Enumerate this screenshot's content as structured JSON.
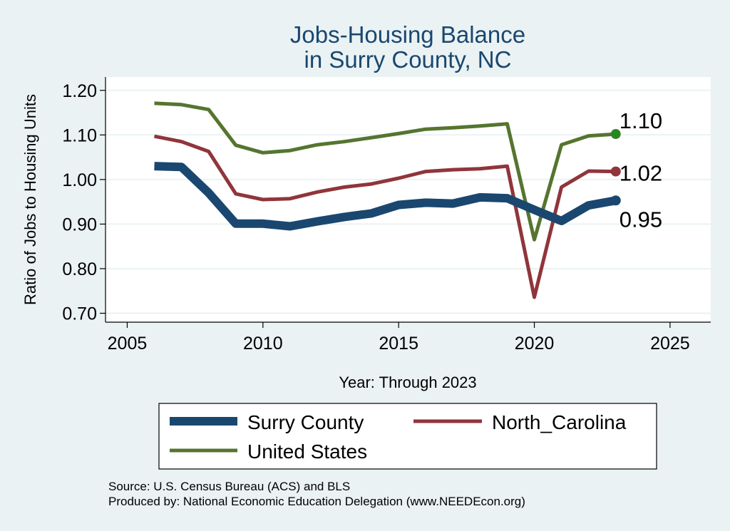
{
  "chart_data": {
    "type": "line",
    "title": [
      "Jobs-Housing Balance",
      "in Surry County, NC"
    ],
    "xlabel": "Year: Through 2023",
    "ylabel": "Ratio of Jobs to Housing Units",
    "xlim": [
      2004.2,
      2026.5
    ],
    "ylim": [
      0.68,
      1.23
    ],
    "xticks": [
      2005,
      2010,
      2015,
      2020,
      2025
    ],
    "yticks": [
      0.7,
      0.8,
      0.9,
      1.0,
      1.1,
      1.2
    ],
    "ytick_labels": [
      "0.70",
      "0.80",
      "0.90",
      "1.00",
      "1.10",
      "1.20"
    ],
    "grid": true,
    "x": [
      2006,
      2007,
      2008,
      2009,
      2010,
      2011,
      2012,
      2013,
      2014,
      2015,
      2016,
      2017,
      2018,
      2019,
      2020,
      2021,
      2022,
      2023
    ],
    "series": [
      {
        "name": "Surry County",
        "color": "#1a476f",
        "values": [
          1.03,
          1.028,
          0.97,
          0.901,
          0.901,
          0.895,
          0.906,
          0.916,
          0.924,
          0.943,
          0.948,
          0.946,
          0.96,
          0.958,
          0.932,
          0.907,
          0.942,
          0.953
        ],
        "end_label": "0.95"
      },
      {
        "name": "North_Carolina",
        "color": "#90353b",
        "values": [
          1.097,
          1.085,
          1.063,
          0.968,
          0.955,
          0.957,
          0.972,
          0.983,
          0.99,
          1.003,
          1.018,
          1.022,
          1.024,
          1.03,
          0.736,
          0.983,
          1.019,
          1.018
        ],
        "end_label": "1.02"
      },
      {
        "name": "United States",
        "color": "#55752f",
        "values": [
          1.171,
          1.168,
          1.157,
          1.077,
          1.06,
          1.065,
          1.078,
          1.085,
          1.094,
          1.103,
          1.113,
          1.116,
          1.12,
          1.125,
          0.865,
          1.078,
          1.098,
          1.102
        ],
        "end_label": "1.10"
      }
    ],
    "legend": [
      "Surry County",
      "North_Carolina",
      "United States"
    ],
    "legend_position": "bottom",
    "notes": [
      "Source: U.S. Census Bureau (ACS) and BLS",
      "Produced by: National Economic Education Delegation (www.NEEDEcon.org)"
    ]
  }
}
